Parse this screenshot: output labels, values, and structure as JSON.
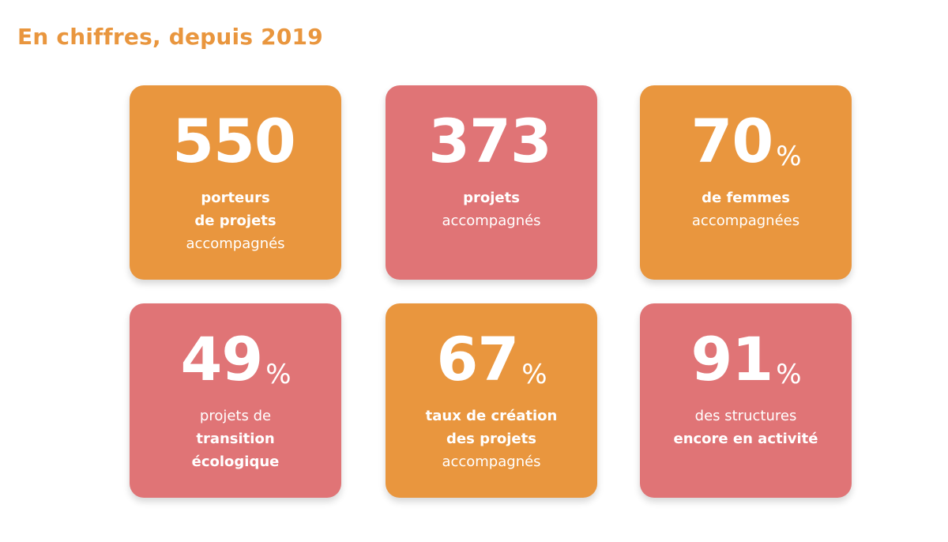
{
  "page": {
    "title": "En chiffres, depuis 2019"
  },
  "colors": {
    "title": "#E9963E",
    "orange": "#E9963E",
    "pink": "#E07476",
    "text_on_card": "#FFFFFF"
  },
  "stats": [
    {
      "value": "550",
      "unit": "",
      "color": "orange",
      "lines": [
        {
          "text": "porteurs",
          "weight": "bold"
        },
        {
          "text": "de projets",
          "weight": "bold"
        },
        {
          "text": "accompagnés",
          "weight": "light"
        }
      ]
    },
    {
      "value": "373",
      "unit": "",
      "color": "pink",
      "lines": [
        {
          "text": "projets",
          "weight": "bold"
        },
        {
          "text": "accompagnés",
          "weight": "light"
        }
      ]
    },
    {
      "value": "70",
      "unit": "%",
      "color": "orange",
      "lines": [
        {
          "text": "de femmes",
          "weight": "bold"
        },
        {
          "text": "accompagnées",
          "weight": "light"
        }
      ]
    },
    {
      "value": "49",
      "unit": "%",
      "color": "pink",
      "lines": [
        {
          "text": "projets de",
          "weight": "light"
        },
        {
          "text": "transition",
          "weight": "bold"
        },
        {
          "text": "écologique",
          "weight": "bold"
        }
      ]
    },
    {
      "value": "67",
      "unit": "%",
      "color": "orange",
      "lines": [
        {
          "text": "taux de création",
          "weight": "bold"
        },
        {
          "text": "des projets",
          "weight": "bold"
        },
        {
          "text": "accompagnés",
          "weight": "light"
        }
      ]
    },
    {
      "value": "91",
      "unit": "%",
      "color": "pink",
      "lines": [
        {
          "text": "des structures",
          "weight": "light"
        },
        {
          "text": "encore en activité",
          "weight": "bold"
        }
      ]
    }
  ]
}
